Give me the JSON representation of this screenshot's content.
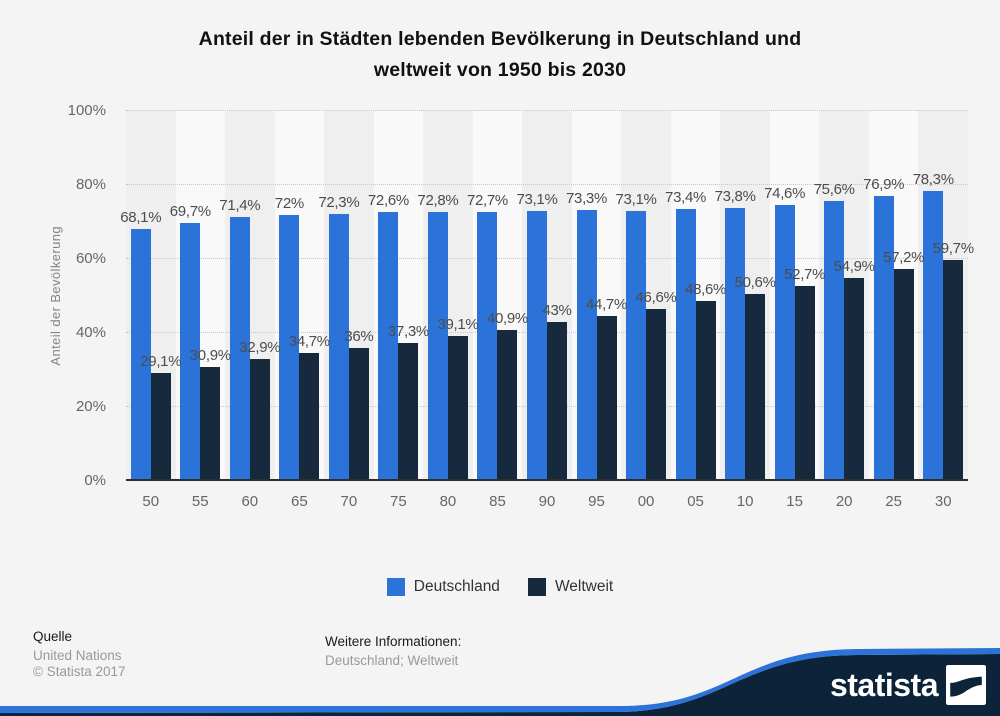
{
  "title": {
    "lines": [
      "Anteil der in Städten lebenden Bevölkerung in Deutschland und",
      "weltweit von 1950 bis 2030"
    ]
  },
  "chart_data": {
    "type": "bar",
    "categories": [
      "50",
      "55",
      "60",
      "65",
      "70",
      "75",
      "80",
      "85",
      "90",
      "95",
      "00",
      "05",
      "10",
      "15",
      "20",
      "25",
      "30"
    ],
    "series": [
      {
        "name": "Deutschland",
        "color": "#2b73d8",
        "values": [
          68.1,
          69.7,
          71.4,
          72,
          72.3,
          72.6,
          72.8,
          72.7,
          73.1,
          73.3,
          73.1,
          73.4,
          73.8,
          74.6,
          75.6,
          76.9,
          78.3
        ],
        "labels": [
          "68,1%",
          "69,7%",
          "71,4%",
          "72%",
          "72,3%",
          "72,6%",
          "72,8%",
          "72,7%",
          "73,1%",
          "73,3%",
          "73,1%",
          "73,4%",
          "73,8%",
          "74,6%",
          "75,6%",
          "76,9%",
          "78,3%"
        ]
      },
      {
        "name": "Weltweit",
        "color": "#17293d",
        "values": [
          29.1,
          30.9,
          32.9,
          34.7,
          36,
          37.3,
          39.1,
          40.9,
          43,
          44.7,
          46.6,
          48.6,
          50.6,
          52.7,
          54.9,
          57.2,
          59.7
        ],
        "labels": [
          "29,1%",
          "30,9%",
          "32,9%",
          "34,7%",
          "36%",
          "37,3%",
          "39,1%",
          "40,9%",
          "43%",
          "44,7%",
          "46,6%",
          "48,6%",
          "50,6%",
          "52,7%",
          "54,9%",
          "57,2%",
          "59,7%"
        ]
      }
    ],
    "title": "Anteil der in Städten lebenden Bevölkerung in Deutschland und weltweit von 1950 bis 2030",
    "xlabel": "",
    "ylabel": "Anteil der Bevölkerung",
    "yticks": [
      "0%",
      "20%",
      "40%",
      "60%",
      "80%",
      "100%"
    ],
    "ylim": [
      0,
      100
    ],
    "grid": "horizontal-dotted",
    "legend_position": "bottom"
  },
  "footer": {
    "source_heading": "Quelle",
    "source_line1": "United Nations",
    "source_line2": "© Statista 2017",
    "info_heading": "Weitere Informationen:",
    "info_text": "Deutschland; Weltweit"
  },
  "logo": {
    "text": "statista"
  },
  "colors": {
    "background": "#f4f4f4",
    "accent_blue": "#2b73d8",
    "dark_navy": "#17293d",
    "wave_navy": "#0d2339",
    "band_even": "#efefef",
    "band_odd": "#f9f9f9"
  }
}
